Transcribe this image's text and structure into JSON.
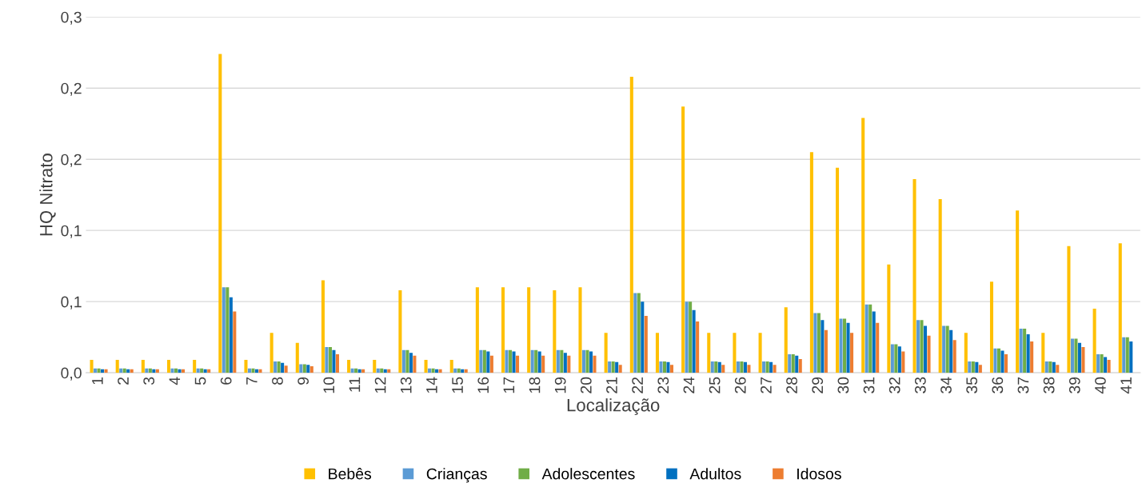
{
  "chart_data": {
    "type": "bar",
    "xlabel": "Localização",
    "ylabel": "HQ Nitrato",
    "categories": [
      "1",
      "2",
      "3",
      "4",
      "5",
      "6",
      "7",
      "8",
      "9",
      "10",
      "11",
      "12",
      "13",
      "14",
      "15",
      "16",
      "17",
      "18",
      "19",
      "20",
      "21",
      "22",
      "23",
      "24",
      "25",
      "26",
      "27",
      "28",
      "29",
      "30",
      "31",
      "32",
      "33",
      "34",
      "35",
      "36",
      "37",
      "38",
      "39",
      "40",
      "41"
    ],
    "series": [
      {
        "name": "Bebês",
        "color": "#ffc000",
        "values": [
          0.009,
          0.009,
          0.009,
          0.009,
          0.009,
          0.224,
          0.009,
          0.028,
          0.021,
          0.065,
          0.009,
          0.009,
          0.058,
          0.009,
          0.009,
          0.06,
          0.06,
          0.06,
          0.058,
          0.06,
          0.028,
          0.208,
          0.028,
          0.187,
          0.028,
          0.028,
          0.028,
          0.046,
          0.155,
          0.144,
          0.179,
          0.076,
          0.136,
          0.122,
          0.028,
          0.064,
          0.114,
          0.028,
          0.089,
          0.045,
          0.091
        ]
      },
      {
        "name": "Crianças",
        "color": "#5b9bd5",
        "values": [
          0.003,
          0.003,
          0.003,
          0.003,
          0.003,
          0.06,
          0.003,
          0.008,
          0.006,
          0.018,
          0.003,
          0.003,
          0.016,
          0.003,
          0.003,
          0.016,
          0.016,
          0.016,
          0.016,
          0.016,
          0.008,
          0.056,
          0.008,
          0.05,
          0.008,
          0.008,
          0.008,
          0.013,
          0.042,
          0.038,
          0.048,
          0.02,
          0.037,
          0.033,
          0.008,
          0.017,
          0.031,
          0.008,
          0.024,
          0.013,
          0.025
        ]
      },
      {
        "name": "Adolescentes",
        "color": "#70ad47",
        "values": [
          0.003,
          0.003,
          0.003,
          0.003,
          0.003,
          0.06,
          0.003,
          0.008,
          0.006,
          0.018,
          0.003,
          0.003,
          0.016,
          0.003,
          0.003,
          0.016,
          0.016,
          0.016,
          0.016,
          0.016,
          0.008,
          0.056,
          0.008,
          0.05,
          0.008,
          0.008,
          0.008,
          0.013,
          0.042,
          0.038,
          0.048,
          0.02,
          0.037,
          0.033,
          0.008,
          0.017,
          0.031,
          0.008,
          0.024,
          0.013,
          0.025
        ]
      },
      {
        "name": "Adultos",
        "color": "#0070c0",
        "values": [
          0.0025,
          0.0025,
          0.0025,
          0.0025,
          0.0025,
          0.053,
          0.0025,
          0.007,
          0.0055,
          0.016,
          0.0025,
          0.0025,
          0.014,
          0.0025,
          0.0025,
          0.015,
          0.015,
          0.015,
          0.014,
          0.015,
          0.0075,
          0.05,
          0.0075,
          0.044,
          0.0075,
          0.0075,
          0.0075,
          0.012,
          0.037,
          0.035,
          0.043,
          0.0185,
          0.033,
          0.03,
          0.0075,
          0.0155,
          0.027,
          0.0075,
          0.021,
          0.011,
          0.022
        ]
      },
      {
        "name": "Idosos",
        "color": "#ed7d31",
        "values": [
          0.0025,
          0.0025,
          0.0025,
          0.0025,
          0.0025,
          0.043,
          0.0025,
          0.005,
          0.0045,
          0.013,
          0.0025,
          0.0025,
          0.012,
          0.0025,
          0.0025,
          0.012,
          0.012,
          0.012,
          0.012,
          0.012,
          0.0056,
          0.04,
          0.0056,
          0.036,
          0.0056,
          0.0056,
          0.0056,
          0.0096,
          0.03,
          0.028,
          0.035,
          0.015,
          0.026,
          0.023,
          0.0056,
          0.013,
          0.022,
          0.0056,
          0.018,
          0.009,
          null
        ]
      }
    ],
    "ylim": [
      0,
      0.25
    ],
    "yticks": [
      {
        "value": 0,
        "label": "0,0"
      },
      {
        "value": 0.05,
        "label": "0,1"
      },
      {
        "value": 0.1,
        "label": "0,1"
      },
      {
        "value": 0.15,
        "label": "0,2"
      },
      {
        "value": 0.2,
        "label": "0,2"
      },
      {
        "value": 0.25,
        "label": "0,3"
      }
    ],
    "grid": "y",
    "legend": "bottom"
  }
}
